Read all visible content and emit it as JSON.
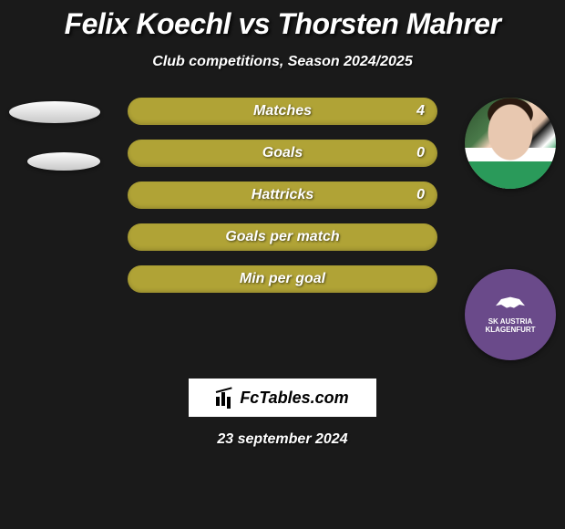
{
  "title": "Felix Koechl vs Thorsten Mahrer",
  "subtitle": "Club competitions, Season 2024/2025",
  "bars": [
    {
      "label": "Matches",
      "value": "4"
    },
    {
      "label": "Goals",
      "value": "0"
    },
    {
      "label": "Hattricks",
      "value": "0"
    },
    {
      "label": "Goals per match",
      "value": ""
    },
    {
      "label": "Min per goal",
      "value": ""
    }
  ],
  "bar_style": {
    "color": "#b0a336",
    "text_color": "#ffffff",
    "height": 30,
    "radius": 15,
    "gap": 16,
    "font_size": 16
  },
  "ellipse_style": {
    "gradient_top": "#fcfcfc",
    "gradient_bottom": "#c8c8c8"
  },
  "club_badge": {
    "bg": "#6a4a8a",
    "text_top": "SK AUSTRIA",
    "text_bottom": "KLAGENFURT"
  },
  "fctables": {
    "label": "FcTables.com",
    "bg": "#ffffff"
  },
  "date": "23 september 2024",
  "background_color": "#1a1a1a"
}
